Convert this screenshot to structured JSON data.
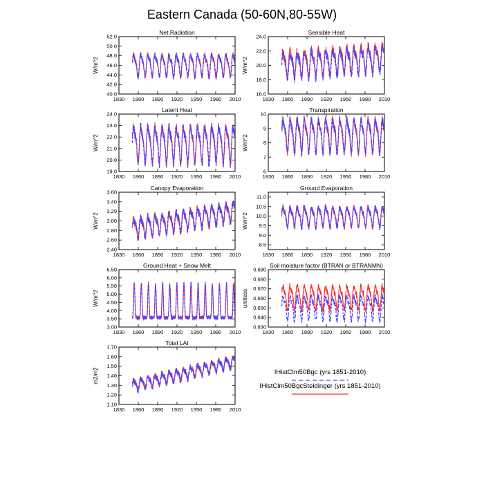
{
  "figure": {
    "title": "Eastern Canada (50-60N,80-55W)"
  },
  "legend": {
    "entries": [
      {
        "label": "IHistClm50Bgc (yrs 1851-2010)",
        "color": "#4a4aff",
        "dash": "dashed"
      },
      {
        "label": "IHistClm50BgcSteidinger (yrs 1851-2010)",
        "color": "#ff2a2a",
        "dash": "solid"
      }
    ]
  },
  "chart_data": [
    {
      "type": "line",
      "title": "Net Radiation",
      "ylabel": "W/m^2",
      "xlim": [
        1830,
        2010
      ],
      "xticks": [
        1830,
        1860,
        1890,
        1920,
        1950,
        1980,
        2010
      ],
      "ylim": [
        40.0,
        52.0
      ],
      "yticks": [
        "40.0",
        "42.0",
        "44.0",
        "46.0",
        "48.0",
        "50.0",
        "52.0"
      ],
      "series": [
        {
          "name": "IHistClm50Bgc (yrs 1851-2010)",
          "x_range": [
            1851,
            2010
          ],
          "cycle_years": 11,
          "approx_mean": 46.2,
          "approx_range": [
            41.8,
            49.2
          ]
        },
        {
          "name": "IHistClm50BgcSteidinger (yrs 1851-2010)",
          "x_range": [
            1851,
            2010
          ],
          "cycle_years": 11,
          "approx_mean": 46.2,
          "approx_range": [
            41.8,
            49.2
          ]
        }
      ]
    },
    {
      "type": "line",
      "title": "Sensible Heat",
      "ylabel": "W/m^2",
      "xlim": [
        1830,
        2010
      ],
      "xticks": [
        1830,
        1860,
        1890,
        1920,
        1950,
        1980,
        2010
      ],
      "ylim": [
        16.0,
        24.0
      ],
      "yticks": [
        "16.0",
        "18.0",
        "20.0",
        "22.0",
        "24.0"
      ],
      "series": [
        {
          "name": "IHistClm50Bgc (yrs 1851-2010)",
          "x_range": [
            1851,
            2010
          ],
          "cycle_years": 11,
          "approx_mean": 20.6,
          "approx_range": [
            16.4,
            23.0
          ]
        },
        {
          "name": "IHistClm50BgcSteidinger (yrs 1851-2010)",
          "x_range": [
            1851,
            2010
          ],
          "cycle_years": 11,
          "approx_mean": 20.7,
          "approx_range": [
            16.5,
            24.0
          ]
        }
      ]
    },
    {
      "type": "line",
      "title": "Latent Heat",
      "ylabel": "W/m^2",
      "xlim": [
        1830,
        2010
      ],
      "xticks": [
        1830,
        1860,
        1890,
        1920,
        1950,
        1980,
        2010
      ],
      "ylim": [
        19.0,
        24.0
      ],
      "yticks": [
        "19.0",
        "20.0",
        "21.0",
        "22.0",
        "23.0",
        "24.0"
      ],
      "series": [
        {
          "name": "IHistClm50Bgc (yrs 1851-2010)",
          "x_range": [
            1851,
            2010
          ],
          "cycle_years": 11,
          "approx_mean": 21.5,
          "approx_range": [
            19.4,
            23.5
          ]
        },
        {
          "name": "IHistClm50BgcSteidinger (yrs 1851-2010)",
          "x_range": [
            1851,
            2010
          ],
          "cycle_years": 11,
          "approx_mean": 21.5,
          "approx_range": [
            19.4,
            23.5
          ]
        }
      ]
    },
    {
      "type": "line",
      "title": "Transpiration",
      "ylabel": "W/m^2",
      "xlim": [
        1830,
        2010
      ],
      "xticks": [
        1830,
        1860,
        1890,
        1920,
        1950,
        1980,
        2010
      ],
      "ylim": [
        6,
        10
      ],
      "yticks": [
        "6",
        "7",
        "8",
        "9",
        "10"
      ],
      "series": [
        {
          "name": "IHistClm50Bgc (yrs 1851-2010)",
          "x_range": [
            1851,
            2010
          ],
          "cycle_years": 11,
          "approx_mean": 8.6,
          "approx_range": [
            6.5,
            9.9
          ]
        },
        {
          "name": "IHistClm50BgcSteidinger (yrs 1851-2010)",
          "x_range": [
            1851,
            2010
          ],
          "cycle_years": 11,
          "approx_mean": 8.6,
          "approx_range": [
            6.5,
            9.9
          ]
        }
      ]
    },
    {
      "type": "line",
      "title": "Canopy Evaporation",
      "ylabel": "W/m^2",
      "xlim": [
        1830,
        2010
      ],
      "xticks": [
        1830,
        1860,
        1890,
        1920,
        1950,
        1980,
        2010
      ],
      "ylim": [
        2.4,
        3.6
      ],
      "yticks": [
        "2.40",
        "2.60",
        "2.80",
        "3.00",
        "3.20",
        "3.40",
        "3.60"
      ],
      "series": [
        {
          "name": "IHistClm50Bgc (yrs 1851-2010)",
          "x_range": [
            1851,
            2010
          ],
          "cycle_years": 11,
          "approx_range": [
            2.45,
            3.5
          ]
        },
        {
          "name": "IHistClm50BgcSteidinger (yrs 1851-2010)",
          "x_range": [
            1851,
            2010
          ],
          "cycle_years": 11,
          "approx_range": [
            2.45,
            3.5
          ]
        }
      ]
    },
    {
      "type": "line",
      "title": "Ground Evaporation",
      "ylabel": "W/m^2",
      "xlim": [
        1830,
        2010
      ],
      "xticks": [
        1830,
        1860,
        1890,
        1920,
        1950,
        1980,
        2010
      ],
      "ylim": [
        8.25,
        11.25
      ],
      "yticks": [
        "8.5",
        "9.0",
        "9.5",
        "10.0",
        "10.5",
        "11.0"
      ],
      "series": [
        {
          "name": "IHistClm50Bgc (yrs 1851-2010)",
          "x_range": [
            1851,
            2010
          ],
          "cycle_years": 11,
          "approx_mean": 10.0,
          "approx_range": [
            8.6,
            11.1
          ]
        },
        {
          "name": "IHistClm50BgcSteidinger (yrs 1851-2010)",
          "x_range": [
            1851,
            2010
          ],
          "cycle_years": 11,
          "approx_mean": 10.0,
          "approx_range": [
            8.7,
            11.0
          ]
        }
      ]
    },
    {
      "type": "line",
      "title": "Ground Heat + Snow Melt",
      "ylabel": "W/m^2",
      "xlim": [
        1830,
        2010
      ],
      "xticks": [
        1830,
        1860,
        1890,
        1920,
        1950,
        1980,
        2010
      ],
      "ylim": [
        3.0,
        6.5
      ],
      "yticks": [
        "3.00",
        "3.50",
        "4.00",
        "4.50",
        "5.00",
        "5.50",
        "6.00",
        "6.50"
      ],
      "series": [
        {
          "name": "IHistClm50Bgc (yrs 1851-2010)",
          "x_range": [
            1851,
            2010
          ],
          "cycle_years": 11,
          "approx_range": [
            3.3,
            6.0
          ]
        },
        {
          "name": "IHistClm50BgcSteidinger (yrs 1851-2010)",
          "x_range": [
            1851,
            2010
          ],
          "cycle_years": 11,
          "approx_range": [
            3.3,
            6.0
          ]
        }
      ]
    },
    {
      "type": "line",
      "title": "Soil moisture factor (BTRAN or BTRANMN)",
      "ylabel": "unitless",
      "xlim": [
        1830,
        2010
      ],
      "xticks": [
        1830,
        1860,
        1890,
        1920,
        1950,
        1980,
        2010
      ],
      "ylim": [
        0.63,
        0.69
      ],
      "yticks": [
        "0.630",
        "0.640",
        "0.650",
        "0.660",
        "0.670",
        "0.680",
        "0.690"
      ],
      "series": [
        {
          "name": "IHistClm50Bgc (yrs 1851-2010)",
          "x_range": [
            1851,
            2010
          ],
          "cycle_years": 11,
          "approx_mean": 0.651,
          "approx_range": [
            0.635,
            0.675
          ]
        },
        {
          "name": "IHistClm50BgcSteidinger (yrs 1851-2010)",
          "x_range": [
            1851,
            2010
          ],
          "cycle_years": 11,
          "approx_mean": 0.662,
          "approx_range": [
            0.648,
            0.685
          ]
        }
      ]
    },
    {
      "type": "line",
      "title": "Total LAI",
      "ylabel": "m2/m2",
      "xlim": [
        1830,
        2010
      ],
      "xticks": [
        1830,
        1860,
        1890,
        1920,
        1950,
        1980,
        2010
      ],
      "ylim": [
        1.1,
        1.7
      ],
      "yticks": [
        "1.10",
        "1.20",
        "1.30",
        "1.40",
        "1.50",
        "1.60",
        "1.70"
      ],
      "series": [
        {
          "name": "IHistClm50Bgc (yrs 1851-2010)",
          "x_range": [
            1851,
            2010
          ],
          "cycle_years": 11,
          "approx_range": [
            1.2,
            1.62
          ]
        },
        {
          "name": "IHistClm50BgcSteidinger (yrs 1851-2010)",
          "x_range": [
            1851,
            2010
          ],
          "cycle_years": 11,
          "approx_range": [
            1.2,
            1.62
          ]
        }
      ]
    }
  ]
}
